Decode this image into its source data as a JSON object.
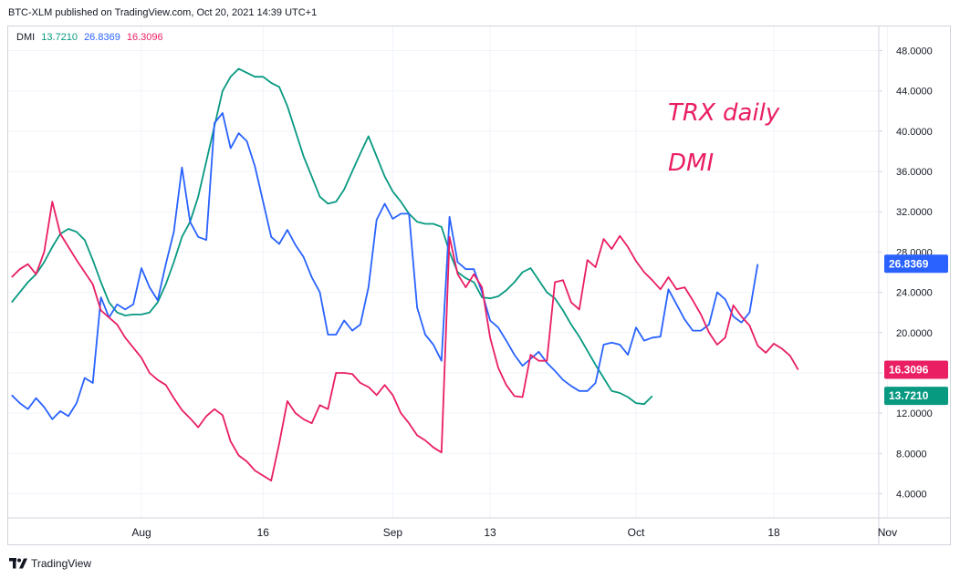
{
  "header": {
    "text": "BTC-XLM published on TradingView.com, Oct 20, 2021 14:39 UTC+1"
  },
  "legend": {
    "name": "DMI",
    "adx_value": "13.7210",
    "plus_di_value": "26.8369",
    "minus_di_value": "16.3096"
  },
  "brand": {
    "label": "TradingView"
  },
  "annotations": [
    "TRX daily",
    "DMI"
  ],
  "colors": {
    "adx": "#089981",
    "plus_di": "#2962ff",
    "minus_di": "#e91e63",
    "grid": "#f0f3fa",
    "axis_border": "#d1d4dc"
  },
  "chart_data": {
    "type": "line",
    "title": "",
    "xlabel": "",
    "ylabel": "",
    "ylim": [
      1.6,
      50.4
    ],
    "x_tick_labels": [
      {
        "label": "Aug",
        "day": 31
      },
      {
        "label": "16",
        "day": 46
      },
      {
        "label": "Sep",
        "day": 62
      },
      {
        "label": "13",
        "day": 74
      },
      {
        "label": "Oct",
        "day": 92
      },
      {
        "label": "18",
        "day": 109
      },
      {
        "label": "Nov",
        "day": 123
      }
    ],
    "y_ticks": [
      4.0,
      8.0,
      12.0,
      16.0,
      20.0,
      24.0,
      28.0,
      32.0,
      36.0,
      40.0,
      44.0,
      48.0
    ],
    "y_tick_labels": [
      "4.0000",
      "8.0000",
      "12.0000",
      "16.0000",
      "20.0000",
      "24.0000",
      "28.0000",
      "32.0000",
      "36.0000",
      "40.0000",
      "44.0000",
      "48.0000"
    ],
    "series": [
      {
        "key": "adx",
        "values": [
          [
            15,
            23.0
          ],
          [
            16,
            24.0
          ],
          [
            17,
            25.0
          ],
          [
            18,
            25.8
          ],
          [
            19,
            27.0
          ],
          [
            20,
            28.5
          ],
          [
            21,
            29.8
          ],
          [
            22,
            30.3
          ],
          [
            23,
            30.0
          ],
          [
            24,
            29.2
          ],
          [
            25,
            27.2
          ],
          [
            26,
            25.0
          ],
          [
            27,
            23.0
          ],
          [
            28,
            22.0
          ],
          [
            29,
            21.7
          ],
          [
            30,
            21.8
          ],
          [
            31,
            21.8
          ],
          [
            32,
            22.0
          ],
          [
            33,
            23.0
          ],
          [
            34,
            24.8
          ],
          [
            35,
            27.0
          ],
          [
            36,
            29.5
          ],
          [
            37,
            31.0
          ],
          [
            38,
            33.5
          ],
          [
            39,
            37.0
          ],
          [
            40,
            40.5
          ],
          [
            41,
            44.0
          ],
          [
            42,
            45.4
          ],
          [
            43,
            46.2
          ],
          [
            44,
            45.8
          ],
          [
            45,
            45.4
          ],
          [
            46,
            45.4
          ],
          [
            47,
            44.8
          ],
          [
            48,
            44.4
          ],
          [
            49,
            42.5
          ],
          [
            50,
            40.0
          ],
          [
            51,
            37.5
          ],
          [
            52,
            35.5
          ],
          [
            53,
            33.5
          ],
          [
            54,
            32.8
          ],
          [
            55,
            33.0
          ],
          [
            56,
            34.2
          ],
          [
            57,
            36.0
          ],
          [
            58,
            37.8
          ],
          [
            59,
            39.5
          ],
          [
            60,
            37.5
          ],
          [
            61,
            35.5
          ],
          [
            62,
            34.0
          ],
          [
            63,
            33.0
          ],
          [
            64,
            31.8
          ],
          [
            65,
            31.0
          ],
          [
            66,
            30.8
          ],
          [
            67,
            30.8
          ],
          [
            68,
            30.5
          ],
          [
            69,
            28.0
          ],
          [
            70,
            26.0
          ],
          [
            71,
            25.4
          ],
          [
            72,
            25.0
          ],
          [
            73,
            23.5
          ],
          [
            74,
            23.4
          ],
          [
            75,
            23.6
          ],
          [
            76,
            24.2
          ],
          [
            77,
            25.0
          ],
          [
            78,
            26.0
          ],
          [
            79,
            26.4
          ],
          [
            80,
            25.2
          ],
          [
            81,
            24.0
          ],
          [
            82,
            23.4
          ],
          [
            83,
            22.2
          ],
          [
            84,
            20.8
          ],
          [
            85,
            19.6
          ],
          [
            86,
            18.2
          ],
          [
            87,
            16.8
          ],
          [
            88,
            15.5
          ],
          [
            89,
            14.2
          ],
          [
            90,
            14.0
          ],
          [
            91,
            13.6
          ],
          [
            92,
            13.0
          ],
          [
            93,
            12.9
          ],
          [
            94,
            13.7
          ]
        ]
      },
      {
        "key": "plus_di",
        "values": [
          [
            15,
            13.8
          ],
          [
            16,
            13.0
          ],
          [
            17,
            12.4
          ],
          [
            18,
            13.5
          ],
          [
            19,
            12.6
          ],
          [
            20,
            11.4
          ],
          [
            21,
            12.2
          ],
          [
            22,
            11.7
          ],
          [
            23,
            13.0
          ],
          [
            24,
            15.5
          ],
          [
            25,
            15.0
          ],
          [
            26,
            23.5
          ],
          [
            27,
            21.5
          ],
          [
            28,
            22.8
          ],
          [
            29,
            22.3
          ],
          [
            30,
            22.8
          ],
          [
            31,
            26.4
          ],
          [
            32,
            24.5
          ],
          [
            33,
            23.2
          ],
          [
            34,
            26.8
          ],
          [
            35,
            30.0
          ],
          [
            36,
            36.4
          ],
          [
            37,
            31.0
          ],
          [
            38,
            29.5
          ],
          [
            39,
            29.2
          ],
          [
            40,
            40.8
          ],
          [
            41,
            41.8
          ],
          [
            42,
            38.3
          ],
          [
            43,
            39.8
          ],
          [
            44,
            39.0
          ],
          [
            45,
            36.5
          ],
          [
            46,
            33.0
          ],
          [
            47,
            29.5
          ],
          [
            48,
            28.8
          ],
          [
            49,
            30.2
          ],
          [
            50,
            28.7
          ],
          [
            51,
            27.5
          ],
          [
            52,
            25.5
          ],
          [
            53,
            24.0
          ],
          [
            54,
            19.8
          ],
          [
            55,
            19.8
          ],
          [
            56,
            21.2
          ],
          [
            57,
            20.2
          ],
          [
            58,
            20.8
          ],
          [
            59,
            24.5
          ],
          [
            60,
            31.2
          ],
          [
            61,
            32.8
          ],
          [
            62,
            31.3
          ],
          [
            63,
            31.8
          ],
          [
            64,
            31.8
          ],
          [
            65,
            22.5
          ],
          [
            66,
            19.8
          ],
          [
            67,
            18.8
          ],
          [
            68,
            17.2
          ],
          [
            69,
            31.5
          ],
          [
            70,
            27.0
          ],
          [
            71,
            26.3
          ],
          [
            72,
            26.3
          ],
          [
            73,
            24.0
          ],
          [
            74,
            21.2
          ],
          [
            75,
            20.5
          ],
          [
            76,
            19.2
          ],
          [
            77,
            17.8
          ],
          [
            78,
            16.7
          ],
          [
            79,
            17.4
          ],
          [
            80,
            18.1
          ],
          [
            81,
            17.0
          ],
          [
            82,
            16.2
          ],
          [
            83,
            15.3
          ],
          [
            84,
            14.7
          ],
          [
            85,
            14.2
          ],
          [
            86,
            14.2
          ],
          [
            87,
            15.0
          ],
          [
            88,
            18.8
          ],
          [
            89,
            19.0
          ],
          [
            90,
            18.8
          ],
          [
            91,
            17.8
          ],
          [
            92,
            20.5
          ],
          [
            93,
            19.2
          ],
          [
            94,
            19.5
          ],
          [
            95,
            19.6
          ],
          [
            96,
            24.3
          ],
          [
            97,
            22.8
          ],
          [
            98,
            21.3
          ],
          [
            99,
            20.2
          ],
          [
            100,
            20.2
          ],
          [
            101,
            20.8
          ],
          [
            102,
            24.0
          ],
          [
            103,
            23.3
          ],
          [
            104,
            21.6
          ],
          [
            105,
            21.0
          ],
          [
            106,
            22.0
          ],
          [
            107,
            26.8
          ]
        ]
      },
      {
        "key": "minus_di",
        "values": [
          [
            15,
            25.5
          ],
          [
            16,
            26.3
          ],
          [
            17,
            26.8
          ],
          [
            18,
            25.8
          ],
          [
            19,
            28.0
          ],
          [
            20,
            33.0
          ],
          [
            21,
            29.8
          ],
          [
            22,
            28.5
          ],
          [
            23,
            27.2
          ],
          [
            24,
            26.0
          ],
          [
            25,
            24.8
          ],
          [
            26,
            22.2
          ],
          [
            27,
            21.5
          ],
          [
            28,
            20.8
          ],
          [
            29,
            19.5
          ],
          [
            30,
            18.5
          ],
          [
            31,
            17.5
          ],
          [
            32,
            16.0
          ],
          [
            33,
            15.3
          ],
          [
            34,
            14.8
          ],
          [
            35,
            13.5
          ],
          [
            36,
            12.3
          ],
          [
            37,
            11.5
          ],
          [
            38,
            10.6
          ],
          [
            39,
            11.7
          ],
          [
            40,
            12.4
          ],
          [
            41,
            11.8
          ],
          [
            42,
            9.2
          ],
          [
            43,
            7.8
          ],
          [
            44,
            7.2
          ],
          [
            45,
            6.3
          ],
          [
            46,
            5.8
          ],
          [
            47,
            5.3
          ],
          [
            48,
            9.0
          ],
          [
            49,
            13.2
          ],
          [
            50,
            12.0
          ],
          [
            51,
            11.4
          ],
          [
            52,
            11.0
          ],
          [
            53,
            12.8
          ],
          [
            54,
            12.4
          ],
          [
            55,
            16.0
          ],
          [
            56,
            16.0
          ],
          [
            57,
            15.9
          ],
          [
            58,
            15.0
          ],
          [
            59,
            14.6
          ],
          [
            60,
            13.8
          ],
          [
            61,
            14.8
          ],
          [
            62,
            13.8
          ],
          [
            63,
            12.0
          ],
          [
            64,
            11.0
          ],
          [
            65,
            9.8
          ],
          [
            66,
            9.3
          ],
          [
            67,
            8.6
          ],
          [
            68,
            8.1
          ],
          [
            69,
            29.5
          ],
          [
            70,
            25.8
          ],
          [
            71,
            24.5
          ],
          [
            72,
            25.8
          ],
          [
            73,
            24.5
          ],
          [
            74,
            19.5
          ],
          [
            75,
            16.5
          ],
          [
            76,
            14.8
          ],
          [
            77,
            13.7
          ],
          [
            78,
            13.6
          ],
          [
            79,
            17.8
          ],
          [
            80,
            17.2
          ],
          [
            81,
            17.2
          ],
          [
            82,
            25.0
          ],
          [
            83,
            25.2
          ],
          [
            84,
            23.0
          ],
          [
            85,
            22.3
          ],
          [
            86,
            27.2
          ],
          [
            87,
            26.5
          ],
          [
            88,
            29.3
          ],
          [
            89,
            28.3
          ],
          [
            90,
            29.6
          ],
          [
            91,
            28.5
          ],
          [
            92,
            27.1
          ],
          [
            93,
            26.0
          ],
          [
            94,
            25.2
          ],
          [
            95,
            24.3
          ],
          [
            96,
            25.5
          ],
          [
            97,
            24.3
          ],
          [
            98,
            24.5
          ],
          [
            99,
            23.2
          ],
          [
            100,
            21.8
          ],
          [
            101,
            20.0
          ],
          [
            102,
            18.8
          ],
          [
            103,
            19.5
          ],
          [
            104,
            22.7
          ],
          [
            105,
            21.6
          ],
          [
            106,
            20.7
          ],
          [
            107,
            18.7
          ],
          [
            108,
            18.0
          ],
          [
            109,
            18.9
          ],
          [
            110,
            18.4
          ],
          [
            111,
            17.7
          ],
          [
            112,
            16.3
          ]
        ]
      }
    ],
    "last_values": {
      "adx": 13.721,
      "plus_di": 26.8369,
      "minus_di": 16.3096
    },
    "grid": true,
    "legend_position": "top-left"
  }
}
